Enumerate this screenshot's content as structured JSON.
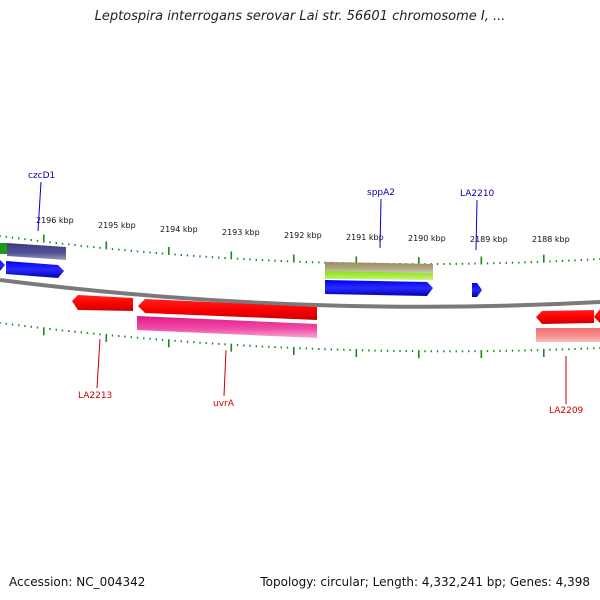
{
  "title": "Leptospira interrogans serovar Lai str. 56601 chromosome I, ...",
  "footer": {
    "accession": "Accession: NC_004342",
    "topology": "Topology: circular; Length: 4,332,241 bp; Genes: 4,398"
  },
  "colors": {
    "backbone": "#808080",
    "tick": "#1a8a1a",
    "forward_label": "#0000aa",
    "reverse_label": "#cc0000"
  },
  "scale_labels": [
    "2196 kbp",
    "2195 kbp",
    "2194 kbp",
    "2193 kbp",
    "2192 kbp",
    "2191 kbp",
    "2190 kbp",
    "2189 kbp",
    "2188 kbp"
  ],
  "gene_labels": [
    {
      "text": "czcD1",
      "strand": "forward"
    },
    {
      "text": "sppA2",
      "strand": "forward"
    },
    {
      "text": "LA2210",
      "strand": "forward"
    },
    {
      "text": "LA2213",
      "strand": "reverse"
    },
    {
      "text": "uvrA",
      "strand": "reverse"
    },
    {
      "text": "LA2209",
      "strand": "reverse"
    }
  ]
}
